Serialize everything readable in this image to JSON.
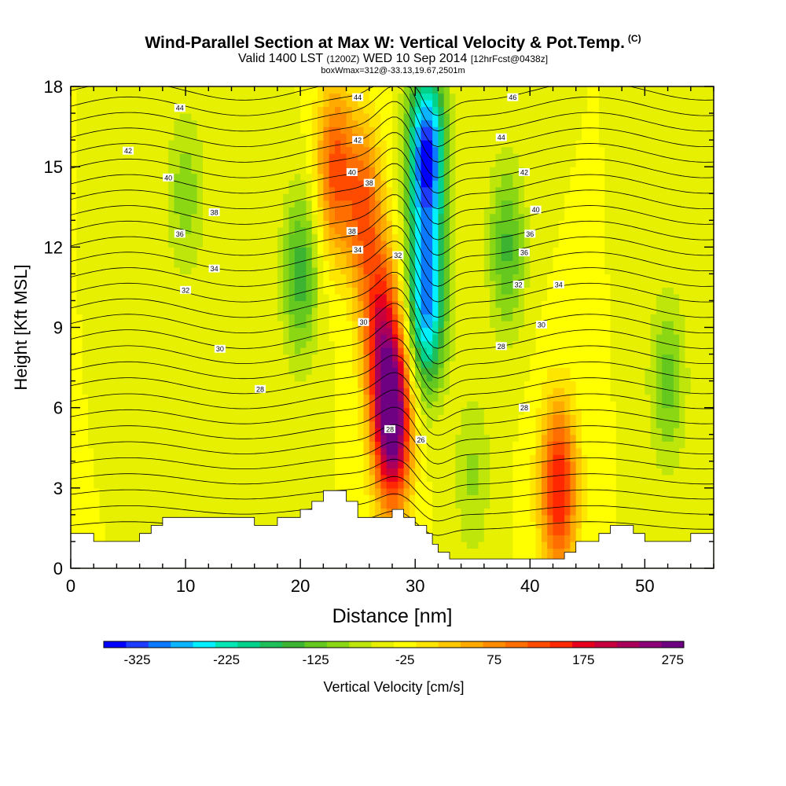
{
  "chart_data": {
    "type": "heatmap",
    "title": "Wind-Parallel Section at Max W: Vertical Velocity & Pot.Temp.",
    "title_suffix": "(C)",
    "subtitle_main": "Valid 1400 LST",
    "subtitle_utc": "(1200Z)",
    "subtitle_date": "WED 10 Sep 2014",
    "subtitle_fcst": "[12hrFcst@0438z]",
    "subtitle2": "boxWmax=312@-33.13,19.67,2501m",
    "xlabel": "Distance [nm]",
    "ylabel": "Height [Kft MSL]",
    "xlim": [
      0,
      56
    ],
    "ylim": [
      0,
      18
    ],
    "x_ticks": [
      0,
      10,
      20,
      30,
      40,
      50
    ],
    "y_ticks": [
      0,
      3,
      6,
      9,
      12,
      15,
      18
    ],
    "colorbar": {
      "label": "Vertical Velocity [cm/s]",
      "tick_labels": [
        "-325",
        "-225",
        "-125",
        "-25",
        "75",
        "175",
        "275"
      ],
      "tick_values": [
        -325,
        -225,
        -125,
        -25,
        75,
        175,
        275
      ],
      "range": [
        -350,
        300
      ],
      "colors": [
        "#0000ff",
        "#1e3cff",
        "#0a78ff",
        "#0ab4ff",
        "#00f0ff",
        "#00e6b4",
        "#00d28c",
        "#1ebe5a",
        "#3cb432",
        "#64c81e",
        "#8cd714",
        "#bee60a",
        "#e6f000",
        "#ffff00",
        "#ffe600",
        "#ffc800",
        "#ffaa00",
        "#ff8c00",
        "#ff6e00",
        "#ff4b00",
        "#ff2800",
        "#e6001e",
        "#c8003c",
        "#aa005a",
        "#8c0078",
        "#6e0082"
      ]
    },
    "velocity_field": {
      "background": -25,
      "features": [
        {
          "x": 28.0,
          "z": 5.5,
          "value": 312
        },
        {
          "x": 27.0,
          "z": 9.0,
          "value": 160
        },
        {
          "x": 25.5,
          "z": 13.5,
          "value": 120
        },
        {
          "x": 31.0,
          "z": 10.0,
          "value": -280
        },
        {
          "x": 31.0,
          "z": 15.5,
          "value": -330
        },
        {
          "x": 20.0,
          "z": 11.0,
          "value": -140
        },
        {
          "x": 38.0,
          "z": 12.0,
          "value": -130
        },
        {
          "x": 42.5,
          "z": 3.0,
          "value": 180
        },
        {
          "x": 23.0,
          "z": 15.0,
          "value": 130
        },
        {
          "x": 52.0,
          "z": 7.0,
          "value": -110
        },
        {
          "x": 10.0,
          "z": 14.0,
          "value": -90
        },
        {
          "x": 35.0,
          "z": 3.5,
          "value": -80
        }
      ]
    },
    "theta_contours": {
      "units": "C",
      "levels": [
        20,
        21,
        22,
        23,
        24,
        25,
        26,
        27,
        28,
        29,
        30,
        31,
        32,
        33,
        34,
        35,
        36,
        37,
        38,
        39,
        40,
        41,
        42,
        43,
        44,
        45,
        46,
        47,
        48
      ]
    },
    "contour_labels": [
      {
        "text": "46",
        "x": 38.5,
        "z": 17.6
      },
      {
        "text": "44",
        "x": 25.0,
        "z": 17.6
      },
      {
        "text": "44",
        "x": 9.5,
        "z": 17.2
      },
      {
        "text": "44",
        "x": 37.5,
        "z": 16.1
      },
      {
        "text": "42",
        "x": 25.0,
        "z": 16.0
      },
      {
        "text": "42",
        "x": 5.0,
        "z": 15.6
      },
      {
        "text": "40",
        "x": 24.5,
        "z": 14.8
      },
      {
        "text": "42",
        "x": 39.5,
        "z": 14.8
      },
      {
        "text": "40",
        "x": 8.5,
        "z": 14.6
      },
      {
        "text": "38",
        "x": 26.0,
        "z": 14.4
      },
      {
        "text": "40",
        "x": 40.5,
        "z": 13.4
      },
      {
        "text": "38",
        "x": 12.5,
        "z": 13.3
      },
      {
        "text": "38",
        "x": 24.5,
        "z": 12.6
      },
      {
        "text": "36",
        "x": 40.0,
        "z": 12.5
      },
      {
        "text": "36",
        "x": 9.5,
        "z": 12.5
      },
      {
        "text": "34",
        "x": 25.0,
        "z": 11.9
      },
      {
        "text": "36",
        "x": 39.5,
        "z": 11.8
      },
      {
        "text": "32",
        "x": 28.5,
        "z": 11.7
      },
      {
        "text": "34",
        "x": 12.5,
        "z": 11.2
      },
      {
        "text": "32",
        "x": 39.0,
        "z": 10.6
      },
      {
        "text": "34",
        "x": 42.5,
        "z": 10.6
      },
      {
        "text": "32",
        "x": 10.0,
        "z": 10.4
      },
      {
        "text": "30",
        "x": 25.5,
        "z": 9.2
      },
      {
        "text": "30",
        "x": 41.0,
        "z": 9.1
      },
      {
        "text": "28",
        "x": 37.5,
        "z": 8.3
      },
      {
        "text": "30",
        "x": 13.0,
        "z": 8.2
      },
      {
        "text": "28",
        "x": 16.5,
        "z": 6.7
      },
      {
        "text": "28",
        "x": 39.5,
        "z": 6.0
      },
      {
        "text": "28",
        "x": 27.8,
        "z": 5.2
      },
      {
        "text": "26",
        "x": 30.5,
        "z": 4.8
      }
    ],
    "terrain": [
      [
        0,
        1.3
      ],
      [
        2,
        1.3
      ],
      [
        2,
        1.0
      ],
      [
        6,
        1.0
      ],
      [
        6,
        1.3
      ],
      [
        7,
        1.3
      ],
      [
        7,
        1.6
      ],
      [
        8,
        1.6
      ],
      [
        8,
        1.9
      ],
      [
        16,
        1.9
      ],
      [
        16,
        1.6
      ],
      [
        18,
        1.6
      ],
      [
        18,
        1.9
      ],
      [
        19,
        1.9
      ],
      [
        19,
        1.9
      ],
      [
        20,
        1.9
      ],
      [
        20,
        2.2
      ],
      [
        21,
        2.2
      ],
      [
        21,
        2.5
      ],
      [
        22,
        2.5
      ],
      [
        22,
        2.9
      ],
      [
        24,
        2.9
      ],
      [
        24,
        2.5
      ],
      [
        25,
        2.5
      ],
      [
        25,
        1.9
      ],
      [
        27,
        1.9
      ],
      [
        27,
        1.9
      ],
      [
        28,
        1.9
      ],
      [
        28,
        2.2
      ],
      [
        29,
        2.2
      ],
      [
        29,
        1.9
      ],
      [
        30,
        1.9
      ],
      [
        30,
        1.6
      ],
      [
        31,
        1.6
      ],
      [
        31,
        1.3
      ],
      [
        31.5,
        1.3
      ],
      [
        31.5,
        0.9
      ],
      [
        32,
        0.9
      ],
      [
        32,
        0.6
      ],
      [
        33,
        0.6
      ],
      [
        33,
        0.35
      ],
      [
        43,
        0.35
      ],
      [
        43,
        0.6
      ],
      [
        44,
        0.6
      ],
      [
        44,
        1.0
      ],
      [
        46,
        1.0
      ],
      [
        46,
        1.3
      ],
      [
        47,
        1.3
      ],
      [
        47,
        1.6
      ],
      [
        49,
        1.6
      ],
      [
        49,
        1.3
      ],
      [
        50,
        1.3
      ],
      [
        50,
        1.0
      ],
      [
        54,
        1.0
      ],
      [
        54,
        1.3
      ],
      [
        56,
        1.3
      ]
    ]
  }
}
